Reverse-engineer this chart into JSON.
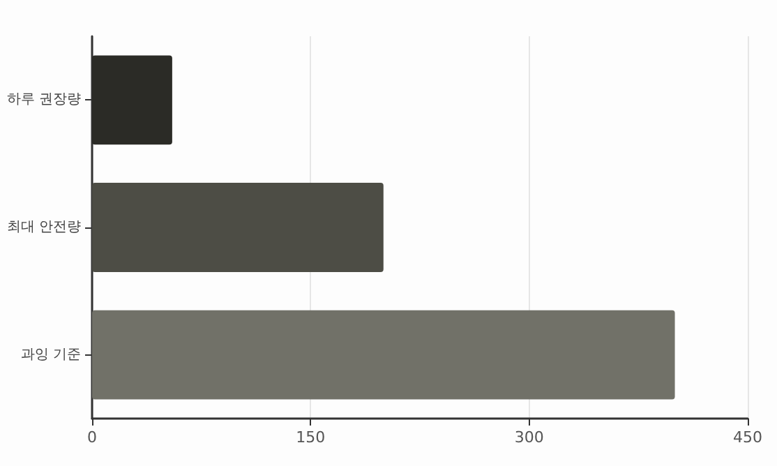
{
  "chart_data": {
    "type": "bar",
    "orientation": "horizontal",
    "categories": [
      "하루 권장량",
      "최대 안전량",
      "과잉 기준"
    ],
    "values": [
      55,
      200,
      400
    ],
    "colors": [
      "#2b2b26",
      "#4d4d45",
      "#717168"
    ],
    "xlim": [
      0,
      450
    ],
    "xticks": [
      0,
      150,
      300,
      450
    ],
    "grid": "x"
  }
}
